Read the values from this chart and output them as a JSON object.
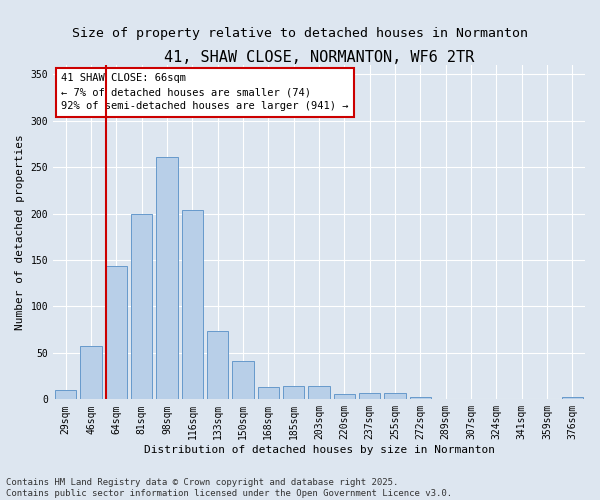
{
  "title": "41, SHAW CLOSE, NORMANTON, WF6 2TR",
  "subtitle": "Size of property relative to detached houses in Normanton",
  "xlabel": "Distribution of detached houses by size in Normanton",
  "ylabel": "Number of detached properties",
  "bar_labels": [
    "29sqm",
    "46sqm",
    "64sqm",
    "81sqm",
    "98sqm",
    "116sqm",
    "133sqm",
    "150sqm",
    "168sqm",
    "185sqm",
    "203sqm",
    "220sqm",
    "237sqm",
    "255sqm",
    "272sqm",
    "289sqm",
    "307sqm",
    "324sqm",
    "341sqm",
    "359sqm",
    "376sqm"
  ],
  "bar_values": [
    10,
    57,
    144,
    200,
    261,
    204,
    74,
    41,
    13,
    14,
    14,
    6,
    7,
    7,
    3,
    0,
    0,
    0,
    0,
    0,
    2
  ],
  "bar_color": "#b8cfe8",
  "bar_edge_color": "#6699cc",
  "vline_x": 2.0,
  "vline_color": "#cc0000",
  "annotation_title": "41 SHAW CLOSE: 66sqm",
  "annotation_line1": "← 7% of detached houses are smaller (74)",
  "annotation_line2": "92% of semi-detached houses are larger (941) →",
  "annotation_box_facecolor": "#ffffff",
  "annotation_box_edgecolor": "#cc0000",
  "ylim": [
    0,
    360
  ],
  "yticks": [
    0,
    50,
    100,
    150,
    200,
    250,
    300,
    350
  ],
  "footer_line1": "Contains HM Land Registry data © Crown copyright and database right 2025.",
  "footer_line2": "Contains public sector information licensed under the Open Government Licence v3.0.",
  "bg_color": "#dde6f0",
  "plot_bg_color": "#dde6f0",
  "title_fontsize": 11,
  "subtitle_fontsize": 9.5,
  "xlabel_fontsize": 8,
  "ylabel_fontsize": 8,
  "tick_fontsize": 7,
  "footer_fontsize": 6.5,
  "annotation_fontsize": 7.5
}
